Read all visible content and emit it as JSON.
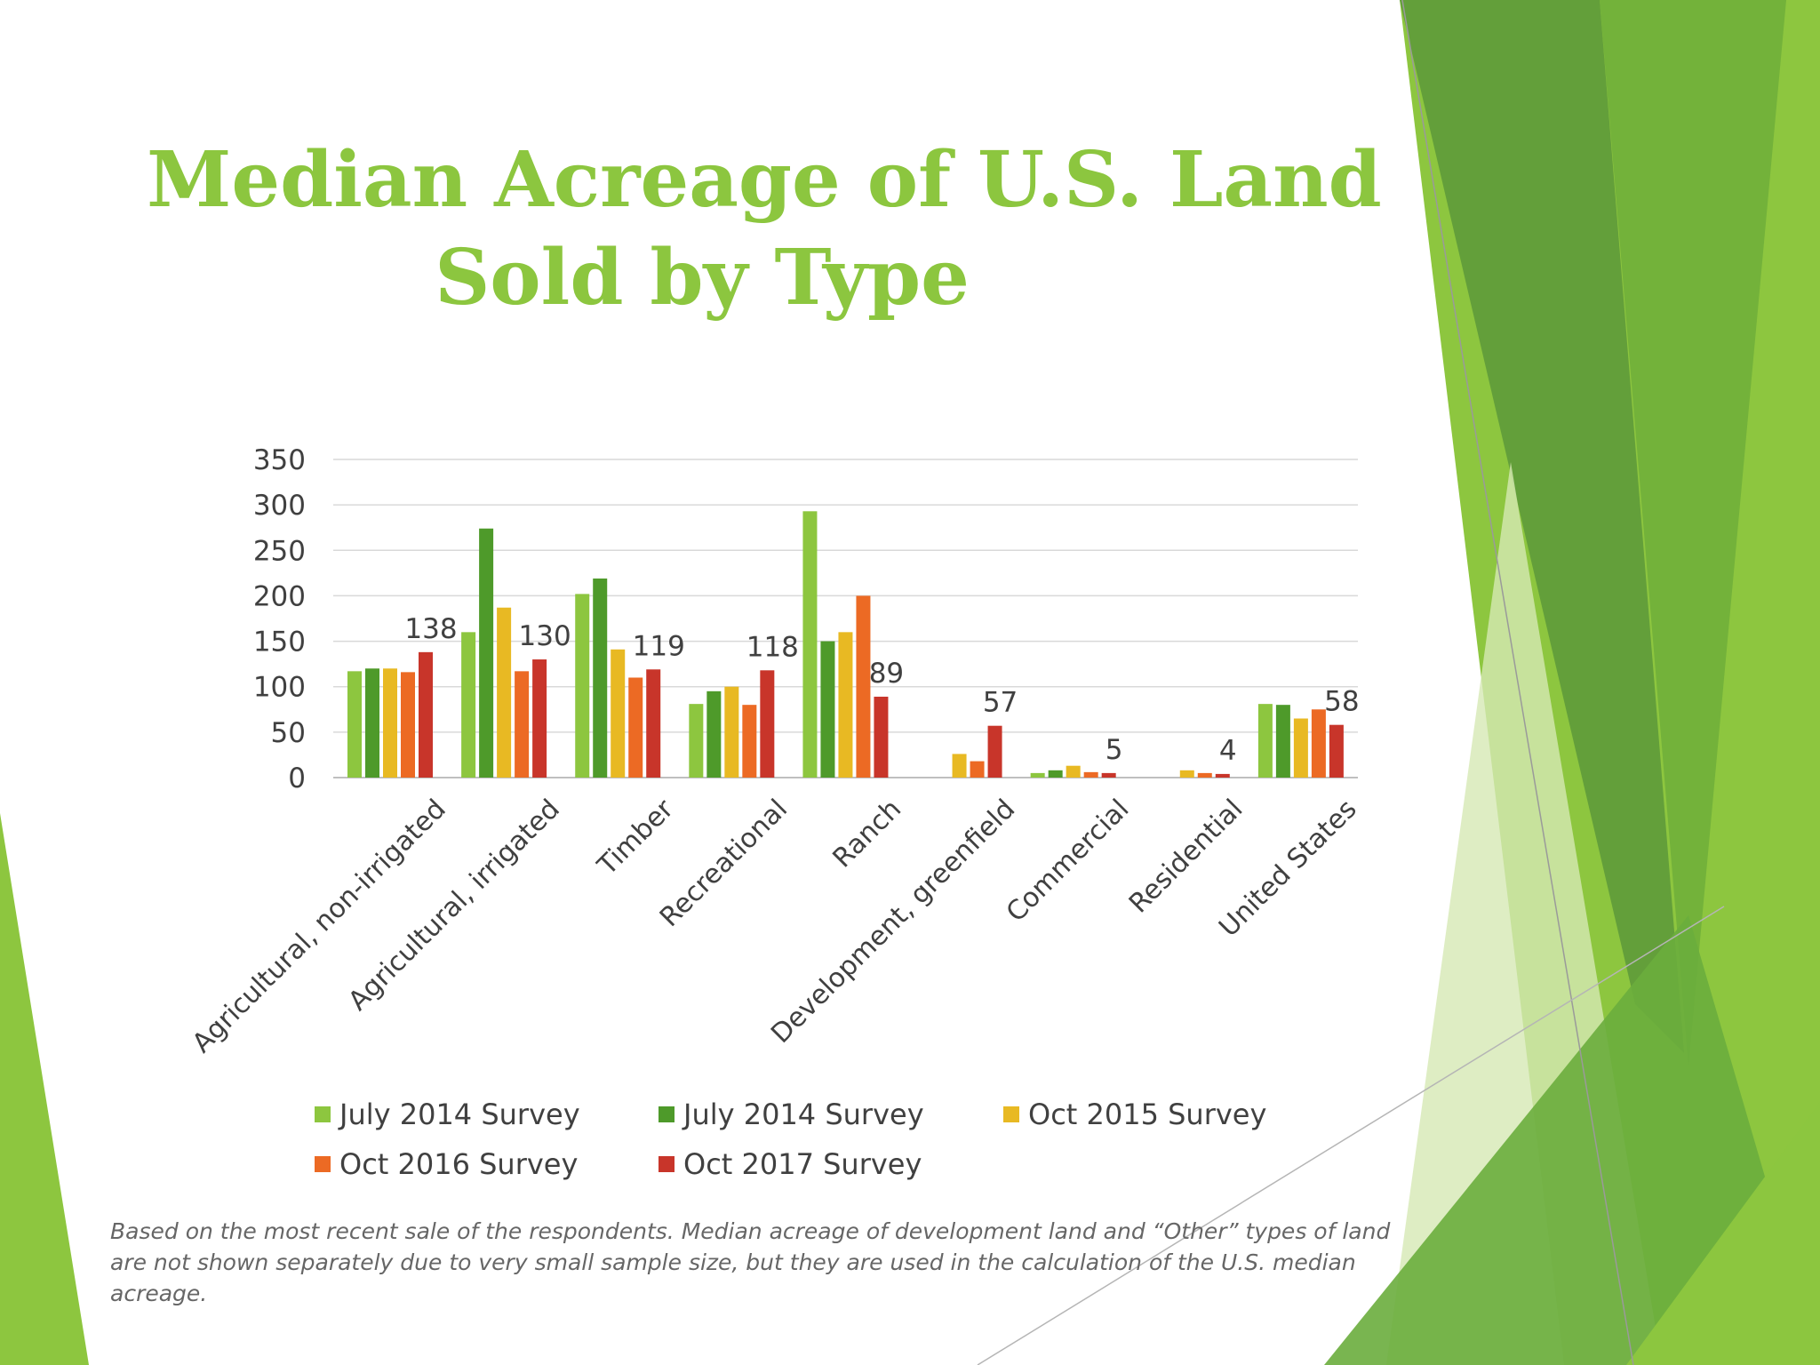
{
  "slide": {
    "title_line1": "Median Acreage of U.S. Land",
    "title_line2": "Sold by Type",
    "footnote": "Based on the most recent sale of the respondents. Median acreage of development land and “Other” types of land are not shown separately due to very small sample size, but they are used in the calculation of the U.S. median acreage."
  },
  "colors": {
    "title": "#8cc63f",
    "deco_light": "#8dc63f",
    "deco_dark": "#5e9a3a",
    "deco_pale": "#d6e8b4"
  },
  "chart_data": {
    "type": "bar",
    "title": "",
    "xlabel": "",
    "ylabel": "",
    "ylim": [
      0,
      350
    ],
    "yticks": [
      0,
      50,
      100,
      150,
      200,
      250,
      300,
      350
    ],
    "grid": true,
    "legend_position": "bottom",
    "categories": [
      "Agricultural, non-irrigated",
      "Agricultural, irrigated",
      "Timber",
      "Recreational",
      "Ranch",
      "Development, greenfield",
      "Commercial",
      "Residential",
      "United States"
    ],
    "series": [
      {
        "name": "July 2014 Survey",
        "color": "#8dc63f",
        "values": [
          117,
          160,
          202,
          81,
          293,
          null,
          5,
          null,
          81
        ]
      },
      {
        "name": "July 2014 Survey",
        "color": "#4e9a2a",
        "values": [
          120,
          274,
          219,
          95,
          150,
          null,
          8,
          null,
          80
        ]
      },
      {
        "name": "Oct 2015 Survey",
        "color": "#e8b923",
        "values": [
          120,
          187,
          141,
          100,
          160,
          26,
          13,
          8,
          65
        ]
      },
      {
        "name": "Oct 2016 Survey",
        "color": "#ec6a24",
        "values": [
          116,
          117,
          110,
          80,
          200,
          18,
          6,
          5,
          75
        ]
      },
      {
        "name": "Oct 2017 Survey",
        "color": "#c8352a",
        "values": [
          138,
          130,
          119,
          118,
          89,
          57,
          5,
          4,
          58
        ]
      }
    ],
    "data_labels": [
      "138",
      "130",
      "119",
      "118",
      "89",
      "57",
      "5",
      "4",
      "58"
    ]
  }
}
